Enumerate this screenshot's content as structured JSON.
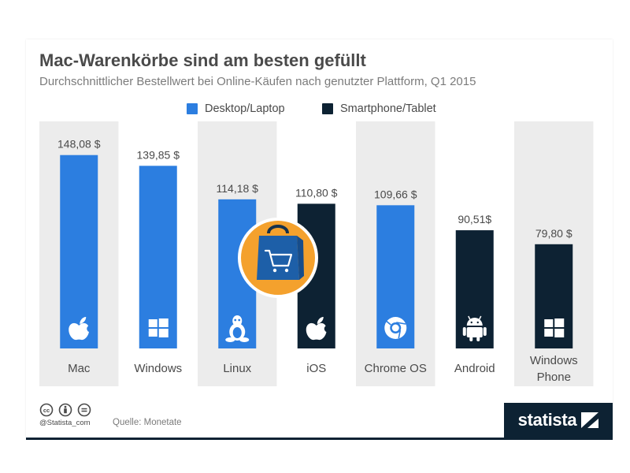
{
  "colors": {
    "desktop": "#2c7ee0",
    "mobile": "#0d2233",
    "band": "#ececec",
    "text": "#4a4a4a",
    "badge": "#f4a12d",
    "bag": "#1d5fa8"
  },
  "chart_data": {
    "type": "bar",
    "title": "Mac-Warenkörbe sind am besten gefüllt",
    "subtitle": "Durchschnittlicher Bestellwert bei Online-Käufen nach genutzter Plattform, Q1 2015",
    "legend": [
      {
        "name": "Desktop/Laptop",
        "color": "#2c7ee0"
      },
      {
        "name": "Smartphone/Tablet",
        "color": "#0d2233"
      }
    ],
    "legend_position": "top-center",
    "categories": [
      "Mac",
      "Windows",
      "Linux",
      "iOS",
      "Chrome OS",
      "Android",
      "Windows Phone"
    ],
    "category_label_lines": [
      [
        "Mac"
      ],
      [
        "Windows"
      ],
      [
        "Linux"
      ],
      [
        "iOS"
      ],
      [
        "Chrome OS"
      ],
      [
        "Android"
      ],
      [
        "Windows",
        "Phone"
      ]
    ],
    "values": [
      148.08,
      139.85,
      114.18,
      110.8,
      109.66,
      90.51,
      79.8
    ],
    "value_labels": [
      "148,08 $",
      "139,85 $",
      "114,18 $",
      "110,80 $",
      "109,66 $",
      "90,51$",
      "79,80 $"
    ],
    "series_membership": [
      "Desktop/Laptop",
      "Desktop/Laptop",
      "Desktop/Laptop",
      "Smartphone/Tablet",
      "Desktop/Laptop",
      "Smartphone/Tablet",
      "Smartphone/Tablet"
    ],
    "icons": [
      "apple-icon",
      "windows-icon",
      "linux-icon",
      "apple-icon",
      "chrome-icon",
      "android-icon",
      "windows-icon"
    ],
    "ylim": [
      0,
      160
    ],
    "grid": false,
    "xlabel": "",
    "ylabel": ""
  },
  "footer": {
    "handle": "@Statista_com",
    "source": "Quelle: Monetate",
    "brand": "statista"
  }
}
